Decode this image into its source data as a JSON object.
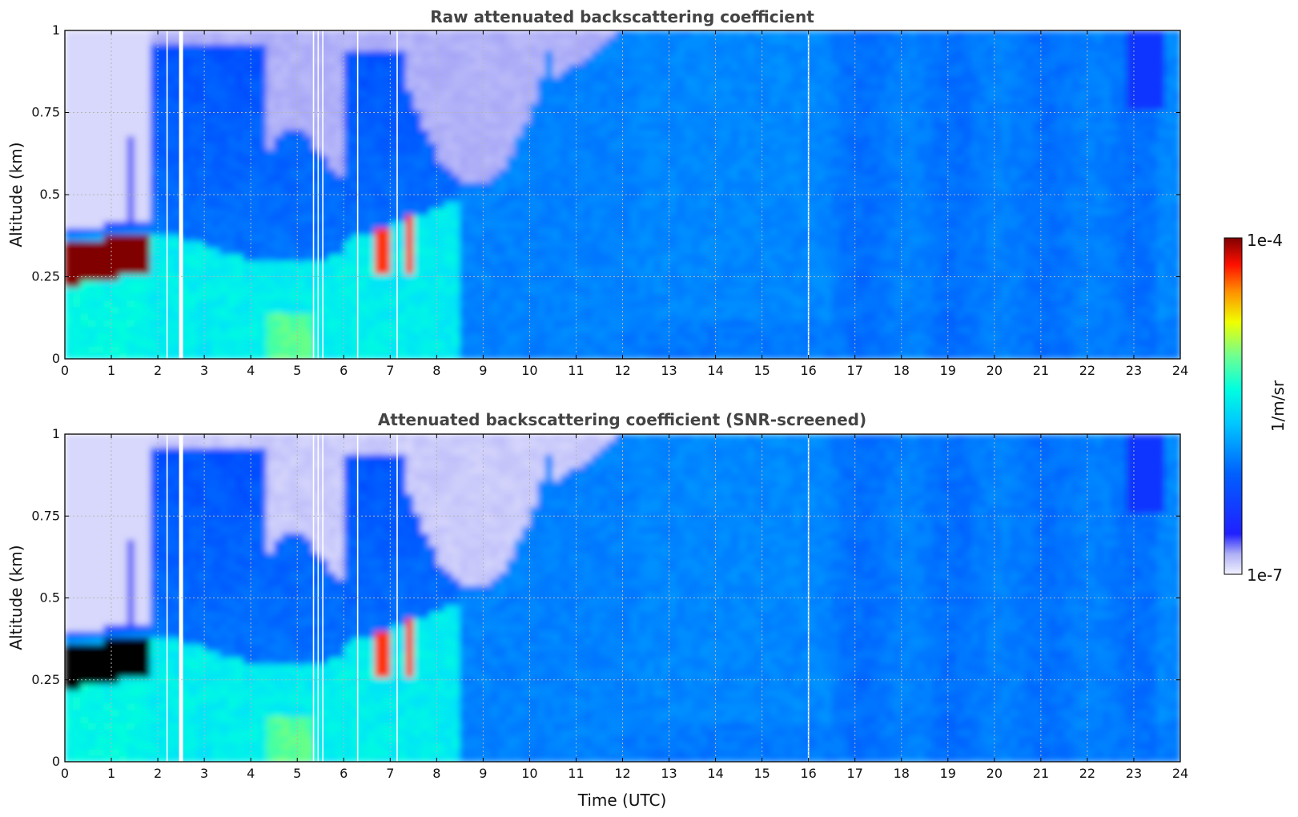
{
  "chart_data": [
    {
      "type": "heatmap",
      "title": "Raw attenuated backscattering coefficient",
      "xlabel": "",
      "ylabel": "Altitude (km)",
      "xlim": [
        0,
        24
      ],
      "ylim": [
        0,
        1
      ],
      "x_ticks": [
        "0",
        "1",
        "2",
        "3",
        "4",
        "5",
        "6",
        "7",
        "8",
        "9",
        "10",
        "11",
        "12",
        "13",
        "14",
        "15",
        "16",
        "17",
        "18",
        "19",
        "20",
        "21",
        "22",
        "23",
        "24"
      ],
      "y_ticks": [
        {
          "value": 0,
          "label": "0"
        },
        {
          "value": 0.25,
          "label": "0.25"
        },
        {
          "value": 0.5,
          "label": "0.5"
        },
        {
          "value": 0.75,
          "label": "0.75"
        },
        {
          "value": 1,
          "label": "1"
        }
      ],
      "grid": true,
      "screened": false,
      "cloud_layer_top_km": {
        "t": [
          0,
          0.5,
          1.0,
          1.5,
          1.8
        ],
        "base": [
          0.22,
          0.24,
          0.26,
          0.28,
          0.3
        ],
        "top": [
          0.37,
          0.35,
          0.36,
          0.37,
          0.38
        ]
      },
      "missing_profiles_utc": [
        2.2,
        2.5,
        5.35,
        5.45,
        5.55,
        6.3,
        7.15,
        16.0
      ]
    },
    {
      "type": "heatmap",
      "title": "Attenuated backscattering coefficient (SNR-screened)",
      "xlabel": "Time (UTC)",
      "ylabel": "Altitude (km)",
      "xlim": [
        0,
        24
      ],
      "ylim": [
        0,
        1
      ],
      "x_ticks": [
        "0",
        "1",
        "2",
        "3",
        "4",
        "5",
        "6",
        "7",
        "8",
        "9",
        "10",
        "11",
        "12",
        "13",
        "14",
        "15",
        "16",
        "17",
        "18",
        "19",
        "20",
        "21",
        "22",
        "23",
        "24"
      ],
      "y_ticks": [
        {
          "value": 0,
          "label": "0"
        },
        {
          "value": 0.25,
          "label": "0.25"
        },
        {
          "value": 0.5,
          "label": "0.5"
        },
        {
          "value": 0.75,
          "label": "0.75"
        },
        {
          "value": 1,
          "label": "1"
        }
      ],
      "grid": true,
      "screened": true,
      "missing_profiles_utc": [
        2.2,
        2.5,
        5.35,
        5.45,
        5.55,
        6.3,
        7.15,
        16.0
      ]
    }
  ],
  "colorbar": {
    "label": "1/m/sr",
    "max_label": "1e-4",
    "min_label": "1e-7",
    "scale": "log",
    "range": [
      1e-07,
      0.0001
    ],
    "colormap": "jet",
    "colors": [
      "#ececfb",
      "#0000ff",
      "#00a0ff",
      "#00ffff",
      "#80ff80",
      "#ffff00",
      "#ff8000",
      "#ff0000",
      "#800000"
    ]
  }
}
